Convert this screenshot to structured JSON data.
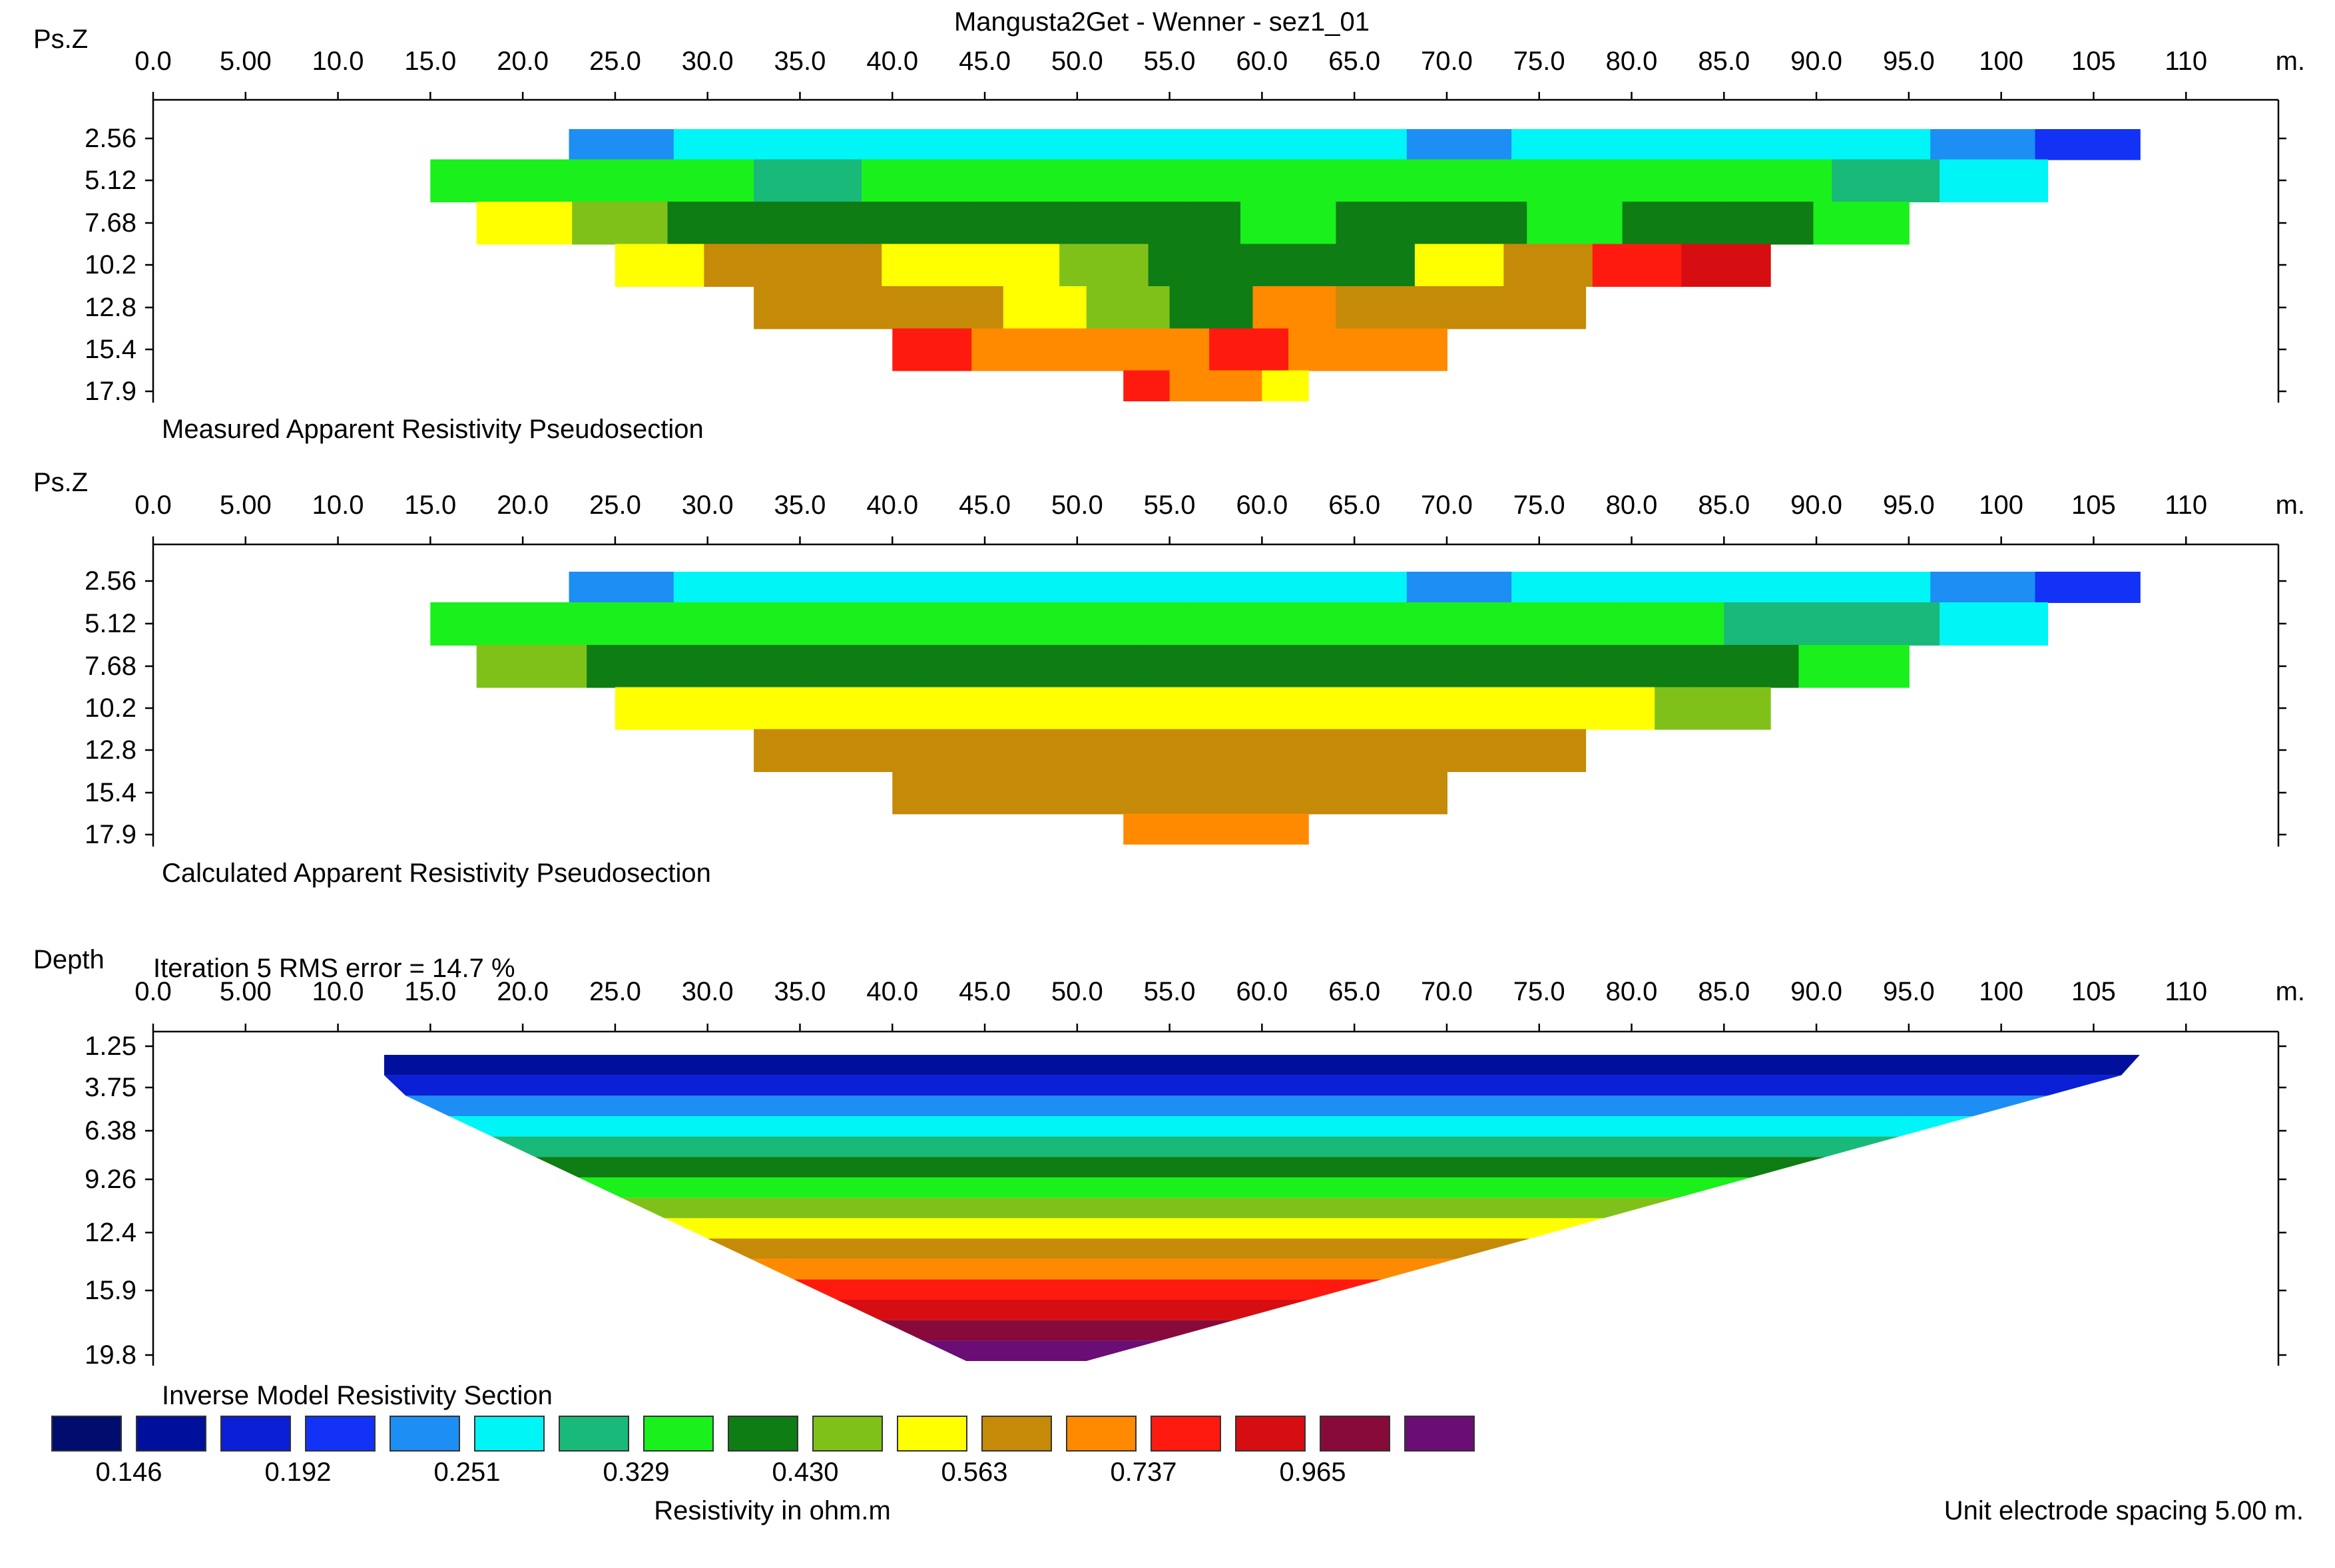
{
  "title": "Mangusta2Get - Wenner - sez1_01",
  "x_unit": "m.",
  "x_tick_labels": [
    "0.0",
    "5.00",
    "10.0",
    "15.0",
    "20.0",
    "25.0",
    "30.0",
    "35.0",
    "40.0",
    "45.0",
    "50.0",
    "55.0",
    "60.0",
    "65.0",
    "70.0",
    "75.0",
    "80.0",
    "85.0",
    "90.0",
    "95.0",
    "100",
    "105",
    "110"
  ],
  "colors": {
    "scale": [
      "#000c6e",
      "#00109c",
      "#0a1fd6",
      "#1232f5",
      "#1c8ef4",
      "#00f5f7",
      "#19b97a",
      "#19f01c",
      "#0d7d14",
      "#80c119",
      "#ffff00",
      "#c48a08",
      "#ff8a00",
      "#ff1a0f",
      "#d60e12",
      "#870a3a",
      "#6a0d74"
    ]
  },
  "legend": {
    "labels": [
      "0.146",
      "0.192",
      "0.251",
      "0.329",
      "0.430",
      "0.563",
      "0.737",
      "0.965"
    ],
    "caption": "Resistivity in ohm.m"
  },
  "footer": {
    "spacing_note": "Unit electrode spacing 5.00 m."
  },
  "chart_data": [
    {
      "type": "heatmap",
      "title": "Measured Apparent Resistivity Pseudosection",
      "y_axis_title": "Ps.Z",
      "y_tick_labels": [
        "2.56",
        "5.12",
        "7.68",
        "10.2",
        "12.8",
        "15.4",
        "17.9"
      ],
      "x_range": [
        0,
        115
      ],
      "x_unit": "m",
      "y_levels": [
        2.56,
        5.12,
        7.68,
        10.2,
        12.8,
        15.4,
        17.9
      ],
      "x_start_per_level": [
        22.5,
        15,
        17.5,
        25,
        32.5,
        40,
        52.5
      ],
      "x_end_per_level": [
        107.5,
        102.5,
        95,
        87.5,
        77.5,
        70,
        62.5
      ],
      "band_color_index_by_level": [
        [
          4,
          5,
          5,
          5,
          5,
          5,
          5,
          5,
          4,
          5,
          5,
          5,
          5,
          4,
          3
        ],
        [
          7,
          7,
          7,
          6,
          7,
          7,
          7,
          7,
          7,
          7,
          7,
          7,
          7,
          6,
          5
        ],
        [
          10,
          9,
          8,
          8,
          8,
          8,
          8,
          8,
          7,
          8,
          8,
          7,
          8,
          8,
          7
        ],
        [
          10,
          11,
          11,
          10,
          10,
          9,
          8,
          8,
          8,
          10,
          11,
          13,
          14
        ],
        [
          11,
          11,
          11,
          10,
          9,
          8,
          12,
          11,
          11,
          11
        ],
        [
          13,
          12,
          12,
          12,
          13,
          12,
          12
        ],
        [
          13,
          12,
          12,
          10
        ]
      ]
    },
    {
      "type": "heatmap",
      "title": "Calculated Apparent Resistivity Pseudosection",
      "y_axis_title": "Ps.Z",
      "y_tick_labels": [
        "2.56",
        "5.12",
        "7.68",
        "10.2",
        "12.8",
        "15.4",
        "17.9"
      ],
      "x_range": [
        0,
        115
      ],
      "x_unit": "m",
      "y_levels": [
        2.56,
        5.12,
        7.68,
        10.2,
        12.8,
        15.4,
        17.9
      ],
      "x_start_per_level": [
        22.5,
        15,
        17.5,
        25,
        32.5,
        40,
        52.5
      ],
      "x_end_per_level": [
        107.5,
        102.5,
        95,
        87.5,
        77.5,
        70,
        62.5
      ],
      "band_color_index_by_level": [
        [
          4,
          5,
          5,
          5,
          5,
          5,
          5,
          5,
          4,
          5,
          5,
          5,
          5,
          4,
          3
        ],
        [
          7,
          7,
          7,
          7,
          7,
          7,
          7,
          7,
          7,
          7,
          7,
          7,
          6,
          6,
          5
        ],
        [
          9,
          8,
          8,
          8,
          8,
          8,
          8,
          8,
          8,
          8,
          8,
          8,
          7
        ],
        [
          10,
          10,
          10,
          10,
          10,
          10,
          10,
          10,
          10,
          9
        ],
        [
          11,
          11,
          11,
          11,
          11,
          11,
          11,
          11
        ],
        [
          11,
          11,
          11,
          11,
          11,
          11
        ],
        [
          12,
          12,
          12
        ]
      ]
    },
    {
      "type": "heatmap",
      "title": "Inverse Model Resistivity Section",
      "subtitle": "Iteration 5 RMS error = 14.7 %",
      "y_axis_title": "Depth",
      "y_tick_labels": [
        "1.25",
        "3.75",
        "6.38",
        "9.26",
        "12.4",
        "15.9",
        "19.8"
      ],
      "x_range": [
        0,
        115
      ],
      "x_unit": "m",
      "y_levels": [
        1.25,
        3.75,
        6.38,
        9.26,
        12.4,
        15.9,
        19.8
      ],
      "depth_bands_color_index": [
        1,
        2,
        4,
        5,
        6,
        8,
        7,
        9,
        10,
        11,
        12,
        13,
        14,
        15,
        16
      ]
    }
  ]
}
